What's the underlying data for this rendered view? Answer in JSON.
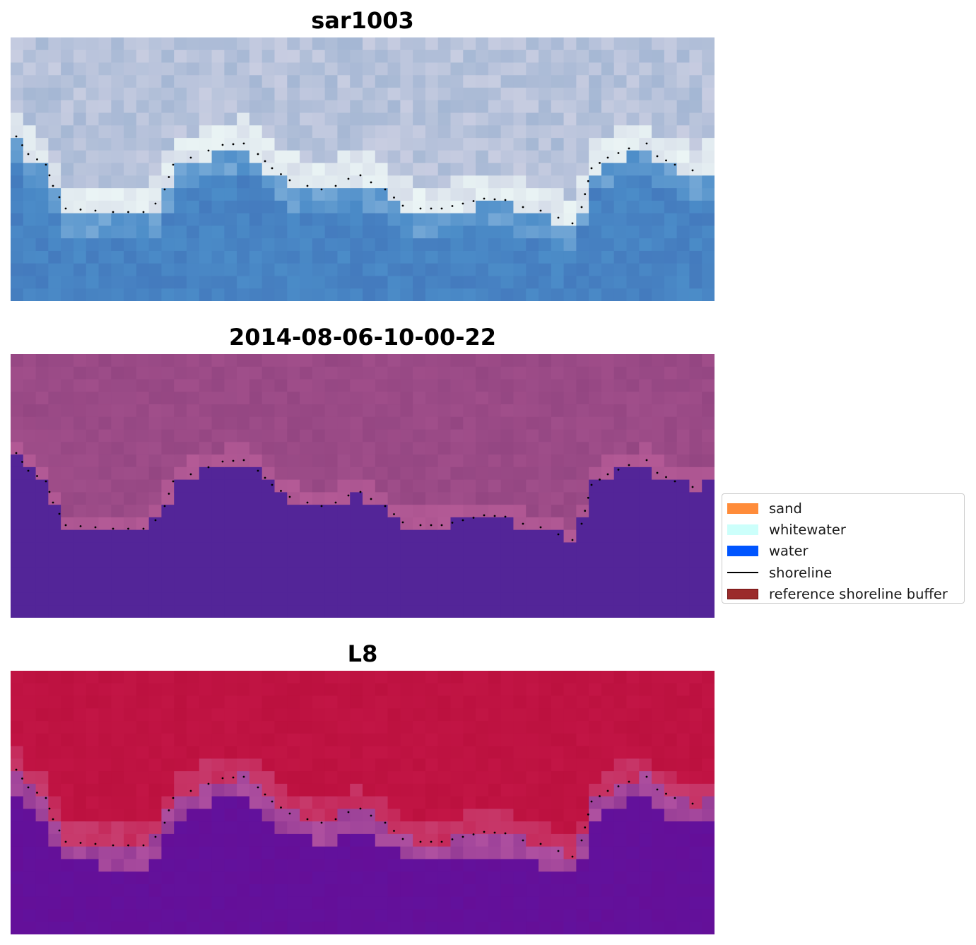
{
  "panels": [
    {
      "title": "sar1003",
      "style": "rgb"
    },
    {
      "title": "2014-08-06-10-00-22",
      "style": "classified"
    },
    {
      "title": "L8",
      "style": "index"
    }
  ],
  "legend": {
    "items": [
      {
        "label": "sand",
        "kind": "patch",
        "color": "#ff8c3a"
      },
      {
        "label": "whitewater",
        "kind": "patch",
        "color": "#ccfffb"
      },
      {
        "label": "water",
        "kind": "patch",
        "color": "#0055ff"
      },
      {
        "label": "shoreline",
        "kind": "line",
        "color": "#000000"
      },
      {
        "label": "reference shoreline buffer",
        "kind": "patch",
        "color": "#9b2b2b",
        "edge": "#7a1414"
      }
    ]
  },
  "colors": {
    "classified_land": "#a04e8a",
    "classified_water": "#532598",
    "index_land": "#c21545",
    "index_water": "#650f98",
    "shoreline_points": "#000000"
  }
}
